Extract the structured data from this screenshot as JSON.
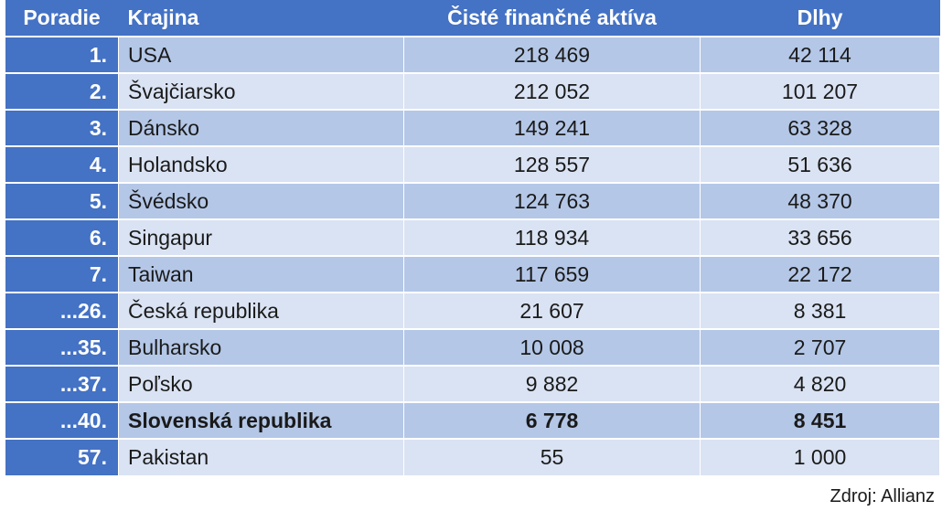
{
  "table": {
    "headers": {
      "rank": "Poradie",
      "country": "Krajina",
      "assets": "Čisté finančné aktíva",
      "debts": "Dlhy"
    },
    "rows": [
      {
        "rank": "1.",
        "country": "USA",
        "assets": "218 469",
        "debts": "42 114"
      },
      {
        "rank": "2.",
        "country": "Švajčiarsko",
        "assets": "212 052",
        "debts": "101 207"
      },
      {
        "rank": "3.",
        "country": "Dánsko",
        "assets": "149 241",
        "debts": "63 328"
      },
      {
        "rank": "4.",
        "country": "Holandsko",
        "assets": "128 557",
        "debts": "51 636"
      },
      {
        "rank": "5.",
        "country": "Švédsko",
        "assets": "124 763",
        "debts": "48 370"
      },
      {
        "rank": "6.",
        "country": "Singapur",
        "assets": "118 934",
        "debts": "33 656"
      },
      {
        "rank": "7.",
        "country": "Taiwan",
        "assets": "117 659",
        "debts": "22 172"
      },
      {
        "rank": "...26.",
        "country": "Česká republika",
        "assets": "21 607",
        "debts": "8 381"
      },
      {
        "rank": "...35.",
        "country": "Bulharsko",
        "assets": "10 008",
        "debts": "2 707"
      },
      {
        "rank": "...37.",
        "country": "Poľsko",
        "assets": "9 882",
        "debts": "4 820"
      },
      {
        "rank": "...40.",
        "country": "Slovenská republika",
        "assets": "6 778",
        "debts": "8 451"
      },
      {
        "rank": "57.",
        "country": "Pakistan",
        "assets": "55",
        "debts": "1 000"
      }
    ]
  },
  "source": "Zdroj: Allianz",
  "colors": {
    "header": "#4472c4",
    "row_dark": "#b4c7e7",
    "row_light": "#dae3f3"
  },
  "highlight_row": 10
}
